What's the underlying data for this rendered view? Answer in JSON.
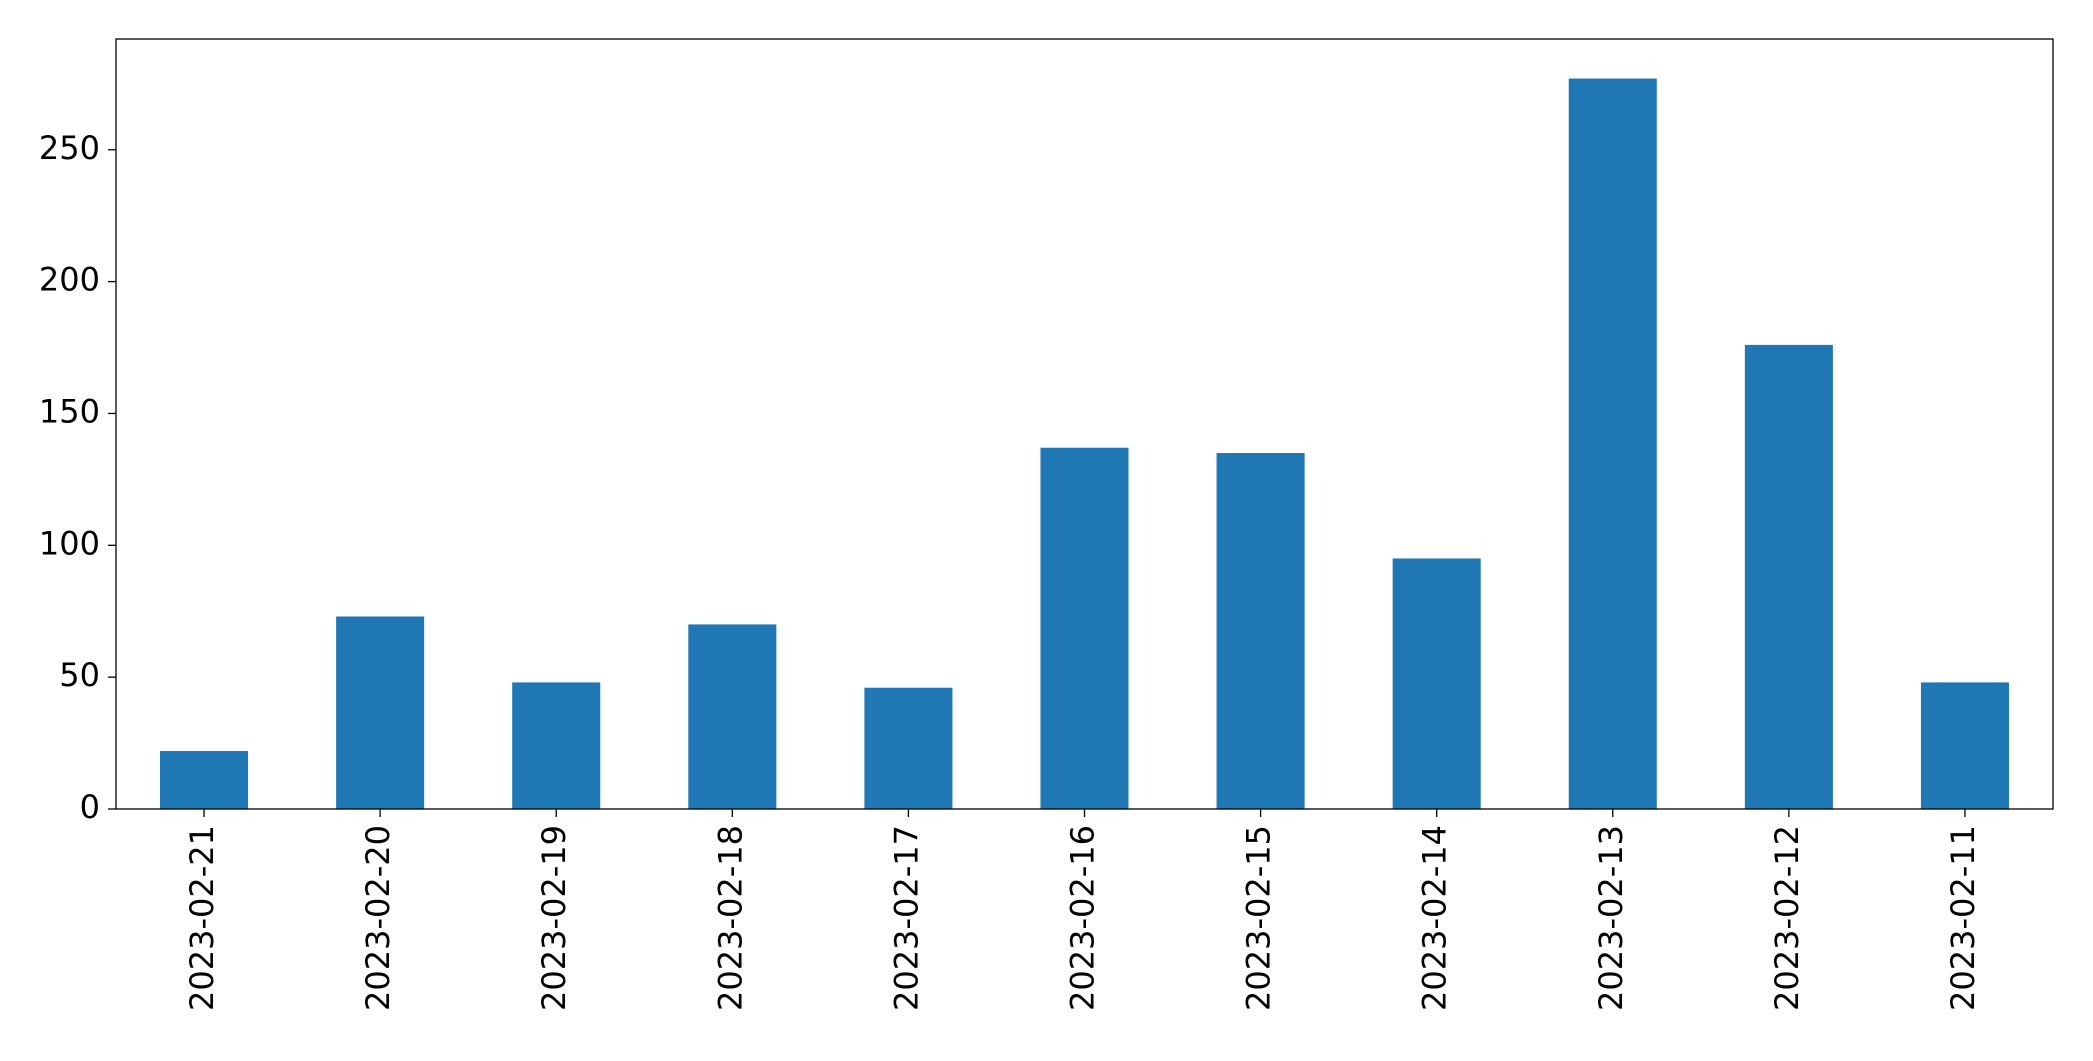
{
  "chart_data": {
    "type": "bar",
    "categories": [
      "2023-02-21",
      "2023-02-20",
      "2023-02-19",
      "2023-02-18",
      "2023-02-17",
      "2023-02-16",
      "2023-02-15",
      "2023-02-14",
      "2023-02-13",
      "2023-02-12",
      "2023-02-11"
    ],
    "values": [
      22,
      73,
      48,
      70,
      46,
      137,
      135,
      95,
      277,
      176,
      48
    ],
    "color": "#1f77b4",
    "ylim": [
      0,
      292
    ],
    "yticks": [
      0,
      50,
      100,
      150,
      200,
      250
    ],
    "grid": false
  }
}
